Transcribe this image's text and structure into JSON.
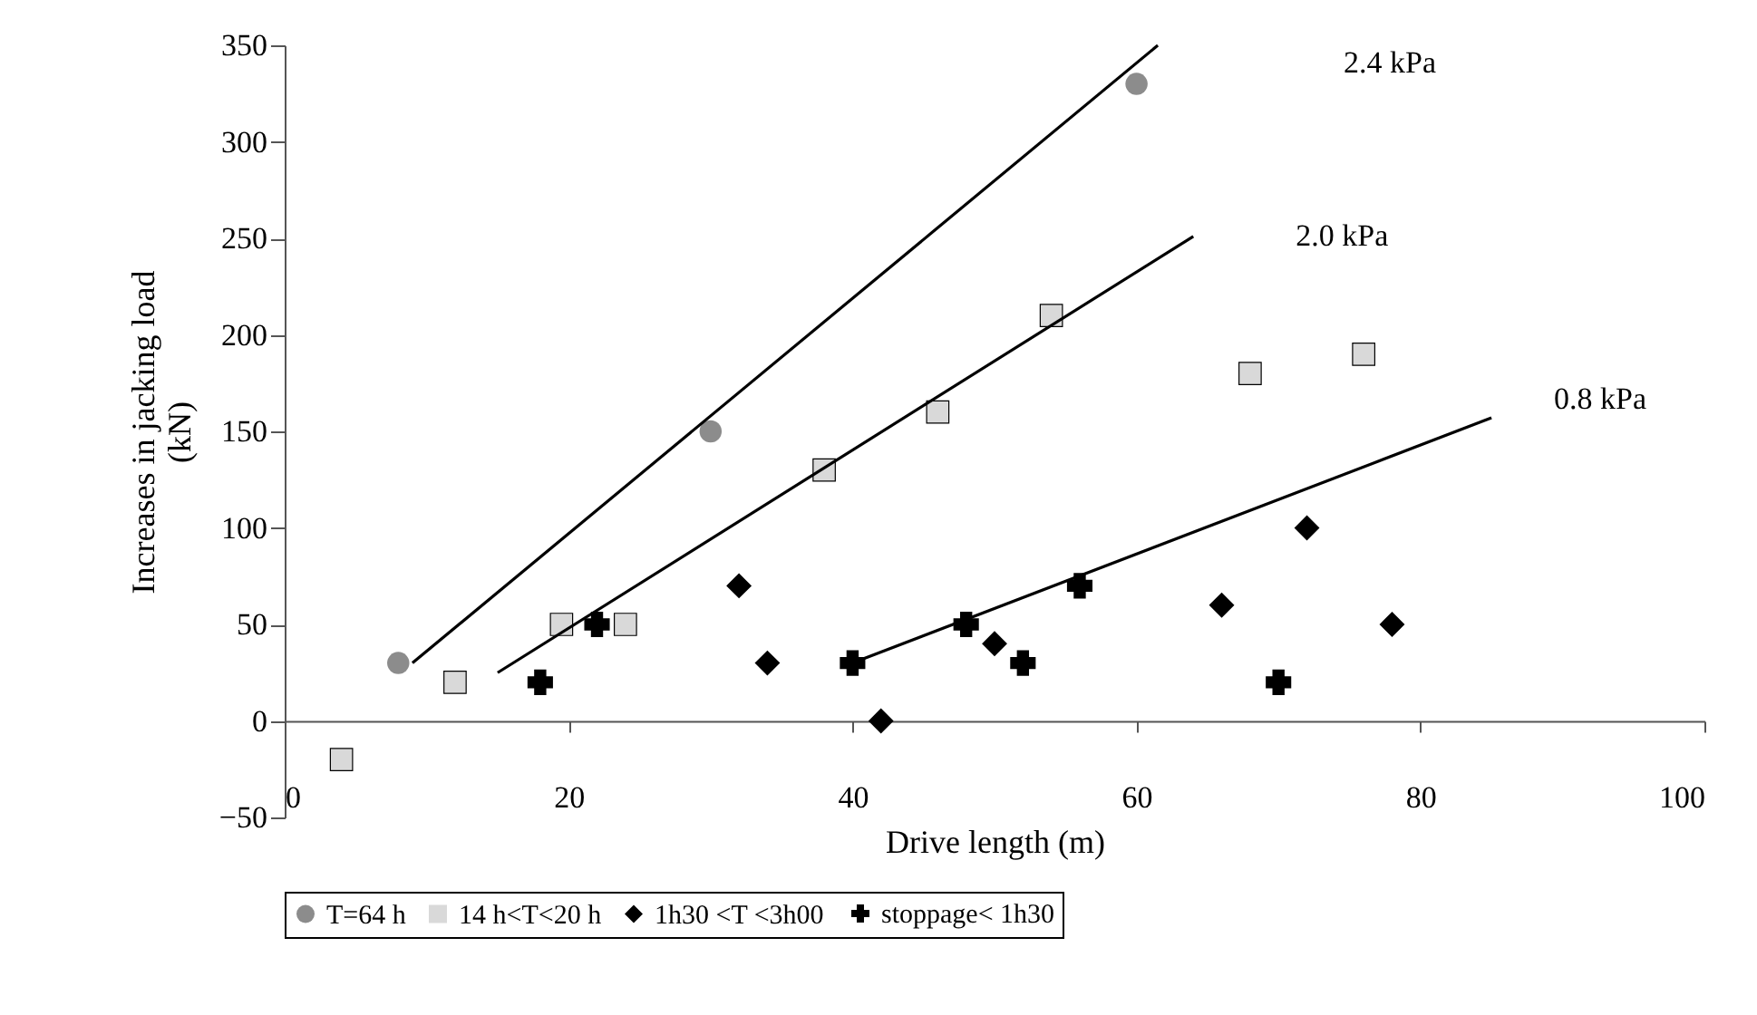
{
  "chart_data": {
    "type": "scatter",
    "xlabel": "Drive length  (m)",
    "ylabel": "Increases in jacking load\n(kN)",
    "xlim": [
      0,
      100
    ],
    "ylim": [
      -50,
      350
    ],
    "xticks": [
      0,
      20,
      40,
      60,
      80,
      100
    ],
    "yticks": [
      -50,
      0,
      50,
      100,
      150,
      200,
      250,
      300,
      350
    ],
    "grid": false,
    "legend": "bottom",
    "series": [
      {
        "name": "T=64 h",
        "color": "#8c8c8c",
        "marker": "circle",
        "x": [
          8,
          30,
          60
        ],
        "values": [
          30,
          150,
          330
        ]
      },
      {
        "name": "14 h<T<20 h",
        "color": "#d9d9d9",
        "marker": "square",
        "x": [
          4,
          12,
          19.5,
          24,
          38,
          46,
          54,
          68,
          76
        ],
        "values": [
          -20,
          20,
          50,
          50,
          130,
          160,
          210,
          180,
          190
        ]
      },
      {
        "name": "1h30 <T <3h00",
        "color": "#000000",
        "marker": "diamond",
        "x": [
          32,
          34,
          42,
          50,
          66,
          72,
          78
        ],
        "values": [
          70,
          30,
          0,
          40,
          60,
          100,
          50
        ]
      },
      {
        "name": "stoppage< 1h30",
        "color": "#000000",
        "marker": "cross",
        "x": [
          18,
          22,
          40,
          48,
          52,
          56,
          70
        ],
        "values": [
          20,
          50,
          30,
          50,
          30,
          70,
          20
        ]
      },
      {
        "type": "line",
        "color": "#000000",
        "marker": "none",
        "x": [
          9,
          61.5
        ],
        "values": [
          30,
          350
        ]
      },
      {
        "type": "line",
        "color": "#000000",
        "marker": "none",
        "x": [
          15,
          64
        ],
        "values": [
          25,
          251
        ]
      },
      {
        "type": "line",
        "color": "#000000",
        "marker": "none",
        "x": [
          40,
          85
        ],
        "values": [
          30,
          157
        ]
      }
    ],
    "annotations": [
      "2.4 kPa",
      "2.0 kPa",
      "0.8 kPa"
    ]
  }
}
